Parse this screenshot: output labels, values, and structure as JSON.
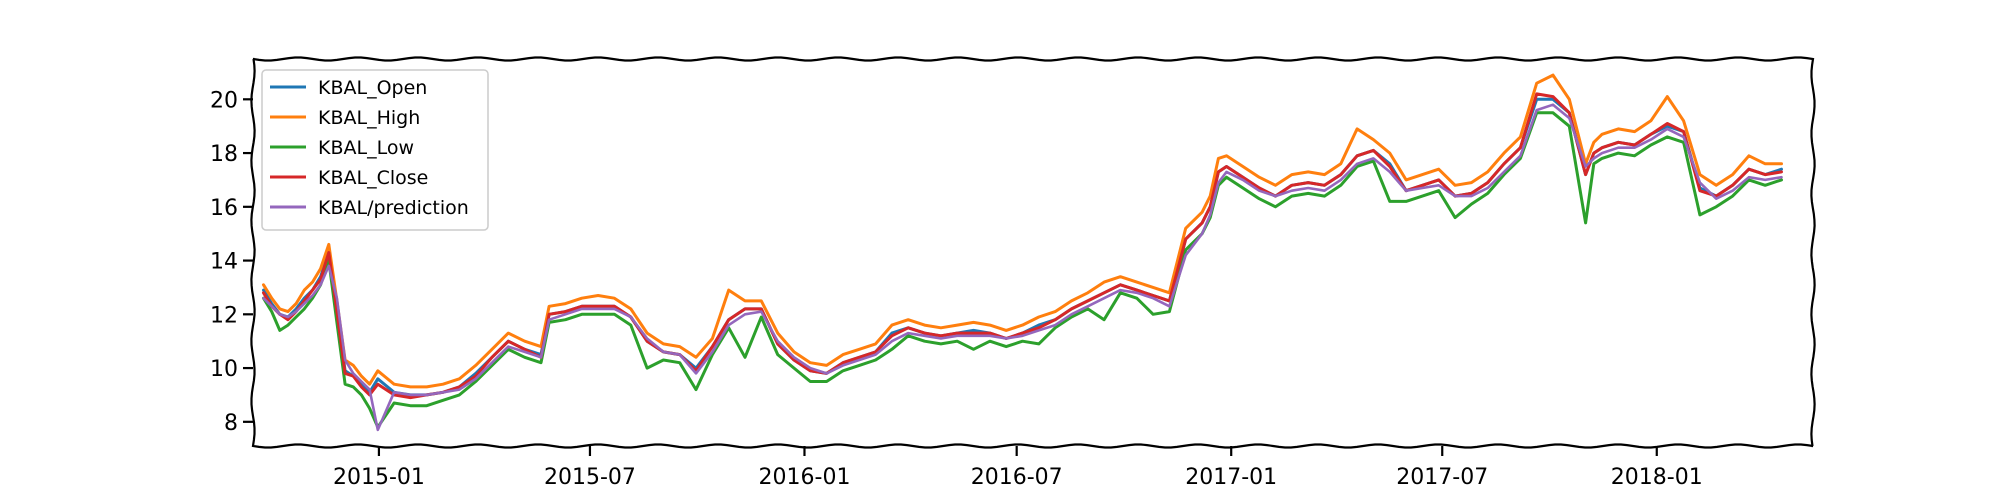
{
  "chart_data": {
    "type": "line",
    "title": "",
    "xlabel": "",
    "ylabel": "",
    "x_range": [
      "2014-09-15",
      "2018-05-15"
    ],
    "ylim": [
      7.1,
      21.5
    ],
    "grid": false,
    "legend": "top-left",
    "x_ticks": [
      {
        "date": "2015-01-01",
        "label": "2015-01"
      },
      {
        "date": "2015-07-01",
        "label": "2015-07"
      },
      {
        "date": "2016-01-01",
        "label": "2016-01"
      },
      {
        "date": "2016-07-01",
        "label": "2016-07"
      },
      {
        "date": "2017-01-01",
        "label": "2017-01"
      },
      {
        "date": "2017-07-01",
        "label": "2017-07"
      },
      {
        "date": "2018-01-01",
        "label": "2018-01"
      }
    ],
    "y_ticks": [
      8,
      10,
      12,
      14,
      16,
      18,
      20
    ],
    "x": [
      "2014-09-24",
      "2014-10-01",
      "2014-10-08",
      "2014-10-15",
      "2014-10-22",
      "2014-10-29",
      "2014-11-05",
      "2014-11-12",
      "2014-11-19",
      "2014-11-26",
      "2014-12-03",
      "2014-12-10",
      "2014-12-17",
      "2014-12-24",
      "2014-12-31",
      "2015-01-14",
      "2015-01-28",
      "2015-02-11",
      "2015-02-25",
      "2015-03-11",
      "2015-03-25",
      "2015-04-08",
      "2015-04-22",
      "2015-05-06",
      "2015-05-20",
      "2015-05-27",
      "2015-06-10",
      "2015-06-24",
      "2015-07-08",
      "2015-07-22",
      "2015-08-05",
      "2015-08-19",
      "2015-09-02",
      "2015-09-16",
      "2015-09-30",
      "2015-10-14",
      "2015-10-28",
      "2015-11-11",
      "2015-11-25",
      "2015-12-09",
      "2015-12-23",
      "2016-01-06",
      "2016-01-20",
      "2016-02-03",
      "2016-02-17",
      "2016-03-02",
      "2016-03-16",
      "2016-03-30",
      "2016-04-13",
      "2016-04-27",
      "2016-05-11",
      "2016-05-25",
      "2016-06-08",
      "2016-06-22",
      "2016-07-06",
      "2016-07-20",
      "2016-08-03",
      "2016-08-17",
      "2016-08-31",
      "2016-09-14",
      "2016-09-28",
      "2016-10-12",
      "2016-10-26",
      "2016-11-09",
      "2016-11-23",
      "2016-12-07",
      "2016-12-14",
      "2016-12-21",
      "2016-12-28",
      "2017-01-11",
      "2017-01-25",
      "2017-02-08",
      "2017-02-22",
      "2017-03-08",
      "2017-03-22",
      "2017-04-05",
      "2017-04-19",
      "2017-05-03",
      "2017-05-17",
      "2017-05-31",
      "2017-06-14",
      "2017-06-28",
      "2017-07-12",
      "2017-07-26",
      "2017-08-09",
      "2017-08-23",
      "2017-09-06",
      "2017-09-20",
      "2017-10-04",
      "2017-10-18",
      "2017-11-01",
      "2017-11-08",
      "2017-11-15",
      "2017-11-29",
      "2017-12-13",
      "2017-12-27",
      "2018-01-10",
      "2018-01-24",
      "2018-02-07",
      "2018-02-21",
      "2018-03-07",
      "2018-03-21",
      "2018-04-04",
      "2018-04-18"
    ],
    "series": [
      {
        "name": "KBAL_Open",
        "color": "#1f77b4",
        "values": [
          12.9,
          12.4,
          12.0,
          11.9,
          12.2,
          12.6,
          12.9,
          13.4,
          14.3,
          12.2,
          9.9,
          9.7,
          9.4,
          9.1,
          9.6,
          9.1,
          9.0,
          9.0,
          9.1,
          9.3,
          9.8,
          10.4,
          11.0,
          10.7,
          10.5,
          12.0,
          12.1,
          12.3,
          12.3,
          12.3,
          11.9,
          11.0,
          10.6,
          10.5,
          10.0,
          10.8,
          11.8,
          12.2,
          12.2,
          10.9,
          10.3,
          9.9,
          9.8,
          10.2,
          10.4,
          10.6,
          11.3,
          11.5,
          11.3,
          11.2,
          11.3,
          11.4,
          11.3,
          11.1,
          11.3,
          11.6,
          11.8,
          12.2,
          12.5,
          12.8,
          13.1,
          12.9,
          12.7,
          12.5,
          14.8,
          15.4,
          16.0,
          17.3,
          17.5,
          17.1,
          16.7,
          16.4,
          16.8,
          16.9,
          16.8,
          17.2,
          17.9,
          18.1,
          17.6,
          16.6,
          16.8,
          17.0,
          16.4,
          16.5,
          16.9,
          17.6,
          18.2,
          20.0,
          20.0,
          19.5,
          17.2,
          18.0,
          18.2,
          18.4,
          18.3,
          18.7,
          19.0,
          18.8,
          16.7,
          16.4,
          16.8,
          17.4,
          17.2,
          17.4
        ]
      },
      {
        "name": "KBAL_High",
        "color": "#ff7f0e",
        "values": [
          13.1,
          12.6,
          12.2,
          12.1,
          12.4,
          12.9,
          13.2,
          13.7,
          14.6,
          12.5,
          10.3,
          10.1,
          9.7,
          9.4,
          9.9,
          9.4,
          9.3,
          9.3,
          9.4,
          9.6,
          10.1,
          10.7,
          11.3,
          11.0,
          10.8,
          12.3,
          12.4,
          12.6,
          12.7,
          12.6,
          12.2,
          11.3,
          10.9,
          10.8,
          10.4,
          11.1,
          12.9,
          12.5,
          12.5,
          11.3,
          10.6,
          10.2,
          10.1,
          10.5,
          10.7,
          10.9,
          11.6,
          11.8,
          11.6,
          11.5,
          11.6,
          11.7,
          11.6,
          11.4,
          11.6,
          11.9,
          12.1,
          12.5,
          12.8,
          13.2,
          13.4,
          13.2,
          13.0,
          12.8,
          15.2,
          15.8,
          16.4,
          17.8,
          17.9,
          17.5,
          17.1,
          16.8,
          17.2,
          17.3,
          17.2,
          17.6,
          18.9,
          18.5,
          18.0,
          17.0,
          17.2,
          17.4,
          16.8,
          16.9,
          17.3,
          18.0,
          18.6,
          20.6,
          20.9,
          20.0,
          17.6,
          18.4,
          18.7,
          18.9,
          18.8,
          19.2,
          20.1,
          19.2,
          17.2,
          16.8,
          17.2,
          17.9,
          17.6,
          17.6
        ]
      },
      {
        "name": "KBAL_Low",
        "color": "#2ca02c",
        "values": [
          12.6,
          12.1,
          11.4,
          11.6,
          11.9,
          12.2,
          12.6,
          13.1,
          14.0,
          11.7,
          9.4,
          9.3,
          9.0,
          8.5,
          7.8,
          8.7,
          8.6,
          8.6,
          8.8,
          9.0,
          9.5,
          10.1,
          10.7,
          10.4,
          10.2,
          11.7,
          11.8,
          12.0,
          12.0,
          12.0,
          11.6,
          10.0,
          10.3,
          10.2,
          9.2,
          10.5,
          11.5,
          10.4,
          11.9,
          10.5,
          10.0,
          9.5,
          9.5,
          9.9,
          10.1,
          10.3,
          10.7,
          11.2,
          11.0,
          10.9,
          11.0,
          10.7,
          11.0,
          10.8,
          11.0,
          10.9,
          11.5,
          11.9,
          12.2,
          11.8,
          12.8,
          12.6,
          12.0,
          12.1,
          14.4,
          15.0,
          15.6,
          16.8,
          17.1,
          16.7,
          16.3,
          16.0,
          16.4,
          16.5,
          16.4,
          16.8,
          17.5,
          17.7,
          16.2,
          16.2,
          16.4,
          16.6,
          15.6,
          16.1,
          16.5,
          17.2,
          17.8,
          19.5,
          19.5,
          19.0,
          15.4,
          17.6,
          17.8,
          18.0,
          17.9,
          18.3,
          18.6,
          18.4,
          15.7,
          16.0,
          16.4,
          17.0,
          16.8,
          17.0
        ]
      },
      {
        "name": "KBAL_Close",
        "color": "#d62728",
        "values": [
          12.8,
          12.3,
          12.0,
          11.8,
          12.1,
          12.5,
          12.9,
          13.3,
          14.3,
          12.1,
          9.8,
          9.7,
          9.3,
          9.0,
          9.4,
          9.0,
          8.9,
          9.0,
          9.1,
          9.3,
          9.7,
          10.4,
          11.0,
          10.7,
          10.4,
          12.0,
          12.1,
          12.3,
          12.3,
          12.3,
          11.9,
          11.0,
          10.6,
          10.5,
          9.9,
          10.8,
          11.8,
          12.2,
          12.2,
          10.9,
          10.3,
          9.9,
          9.8,
          10.2,
          10.4,
          10.6,
          11.2,
          11.5,
          11.3,
          11.2,
          11.3,
          11.3,
          11.3,
          11.1,
          11.3,
          11.5,
          11.8,
          12.2,
          12.5,
          12.8,
          13.1,
          12.9,
          12.7,
          12.5,
          14.8,
          15.4,
          16.0,
          17.3,
          17.5,
          17.1,
          16.7,
          16.4,
          16.8,
          16.9,
          16.8,
          17.2,
          17.9,
          18.1,
          17.5,
          16.6,
          16.8,
          17.0,
          16.4,
          16.5,
          16.9,
          17.6,
          18.2,
          20.2,
          20.1,
          19.5,
          17.2,
          18.0,
          18.2,
          18.4,
          18.3,
          18.7,
          19.1,
          18.8,
          16.6,
          16.4,
          16.8,
          17.4,
          17.2,
          17.3
        ]
      },
      {
        "name": "KBAL/prediction",
        "color": "#9467bd",
        "values": [
          12.6,
          12.3,
          12.0,
          11.9,
          12.1,
          12.4,
          12.7,
          13.1,
          13.8,
          12.6,
          10.3,
          9.8,
          9.5,
          9.2,
          7.7,
          9.1,
          9.0,
          9.0,
          9.1,
          9.2,
          9.6,
          10.2,
          10.8,
          10.6,
          10.4,
          11.8,
          12.0,
          12.2,
          12.2,
          12.2,
          11.9,
          11.1,
          10.6,
          10.5,
          9.8,
          10.6,
          11.6,
          12.0,
          12.1,
          11.0,
          10.4,
          10.0,
          9.8,
          10.1,
          10.3,
          10.5,
          11.0,
          11.3,
          11.2,
          11.1,
          11.2,
          11.2,
          11.2,
          11.1,
          11.2,
          11.4,
          11.6,
          12.0,
          12.3,
          12.6,
          12.9,
          12.8,
          12.6,
          12.3,
          14.2,
          15.0,
          15.7,
          16.9,
          17.3,
          17.0,
          16.6,
          16.4,
          16.6,
          16.7,
          16.6,
          17.0,
          17.6,
          17.8,
          17.3,
          16.6,
          16.7,
          16.8,
          16.4,
          16.4,
          16.7,
          17.3,
          17.9,
          19.6,
          19.8,
          19.3,
          17.5,
          17.8,
          18.0,
          18.2,
          18.2,
          18.5,
          18.9,
          18.6,
          16.9,
          16.3,
          16.6,
          17.1,
          17.0,
          17.1
        ]
      }
    ]
  }
}
